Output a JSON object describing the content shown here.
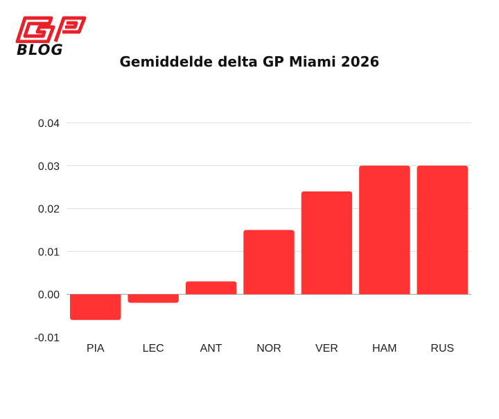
{
  "brand": {
    "logo_top": "GP",
    "logo_bottom": "BLOG",
    "logo_color": "#e8202a"
  },
  "chart_data": {
    "type": "bar",
    "title": "Gemiddelde delta GP Miami 2026",
    "categories": [
      "PIA",
      "LEC",
      "ANT",
      "NOR",
      "VER",
      "HAM",
      "RUS"
    ],
    "values": [
      -0.006,
      -0.002,
      0.003,
      0.015,
      0.024,
      0.03,
      0.03
    ],
    "yticks": [
      "-0.01",
      "0.00",
      "0.01",
      "0.02",
      "0.03",
      "0.04"
    ],
    "ylim": [
      -0.01,
      0.04
    ],
    "xlabel": "",
    "ylabel": "",
    "bar_color": "#ff3333",
    "grid": true,
    "legend": false
  }
}
